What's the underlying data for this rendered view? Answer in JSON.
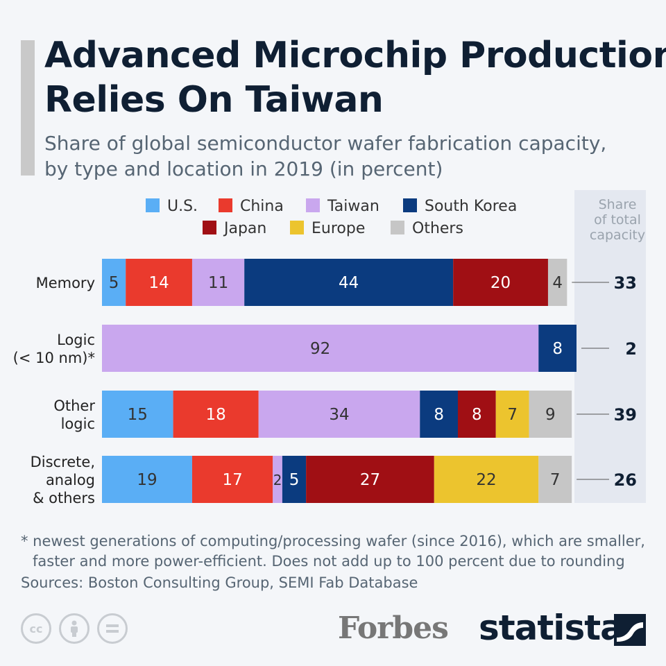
{
  "title_lines": [
    "Advanced Microchip Production",
    "Relies On Taiwan"
  ],
  "subtitle_lines": [
    "Share of global semiconductor wafer fabrication capacity,",
    "by type and location in 2019 (in percent)"
  ],
  "chart_data": {
    "type": "bar",
    "orientation": "horizontal",
    "stacked": true,
    "legend_position": "top",
    "unit": "percent",
    "series": [
      {
        "name": "U.S.",
        "color": "#5aaef5",
        "label_color": "#333333"
      },
      {
        "name": "China",
        "color": "#ea3a2d",
        "label_color": "#ffffff"
      },
      {
        "name": "Taiwan",
        "color": "#c9a7ee",
        "label_color": "#333333"
      },
      {
        "name": "South Korea",
        "color": "#0b3b7f",
        "label_color": "#ffffff"
      },
      {
        "name": "Japan",
        "color": "#a00f14",
        "label_color": "#ffffff"
      },
      {
        "name": "Europe",
        "color": "#ecc42e",
        "label_color": "#333333"
      },
      {
        "name": "Others",
        "color": "#c6c6c6",
        "label_color": "#333333"
      }
    ],
    "categories": [
      {
        "label_lines": [
          "Memory"
        ],
        "values": [
          5,
          14,
          11,
          44,
          20,
          null,
          4
        ],
        "share_of_total": 33
      },
      {
        "label_lines": [
          "Logic",
          "(< 10 nm)*"
        ],
        "values": [
          null,
          null,
          92,
          8,
          null,
          null,
          null
        ],
        "share_of_total": 2
      },
      {
        "label_lines": [
          "Other",
          "logic"
        ],
        "values": [
          15,
          18,
          34,
          8,
          8,
          7,
          9
        ],
        "share_of_total": 39
      },
      {
        "label_lines": [
          "Discrete,",
          "analog",
          "& others"
        ],
        "values": [
          19,
          17,
          2,
          5,
          27,
          22,
          7
        ],
        "share_of_total": 26
      }
    ],
    "share_column_title_lines": [
      "Share",
      "of total",
      "capacity"
    ],
    "share_column_bg": "#e4e8f0",
    "title": "Advanced Microchip Production Relies On Taiwan"
  },
  "footnote_lines": [
    "* newest generations of computing/processing wafer (since 2016), which are smaller,",
    "faster and more power-efficient. Does not add up to 100 percent due to rounding"
  ],
  "sources": "Sources: Boston Consulting Group, SEMI Fab Database",
  "logos": {
    "forbes": "Forbes",
    "statista": "statista"
  }
}
